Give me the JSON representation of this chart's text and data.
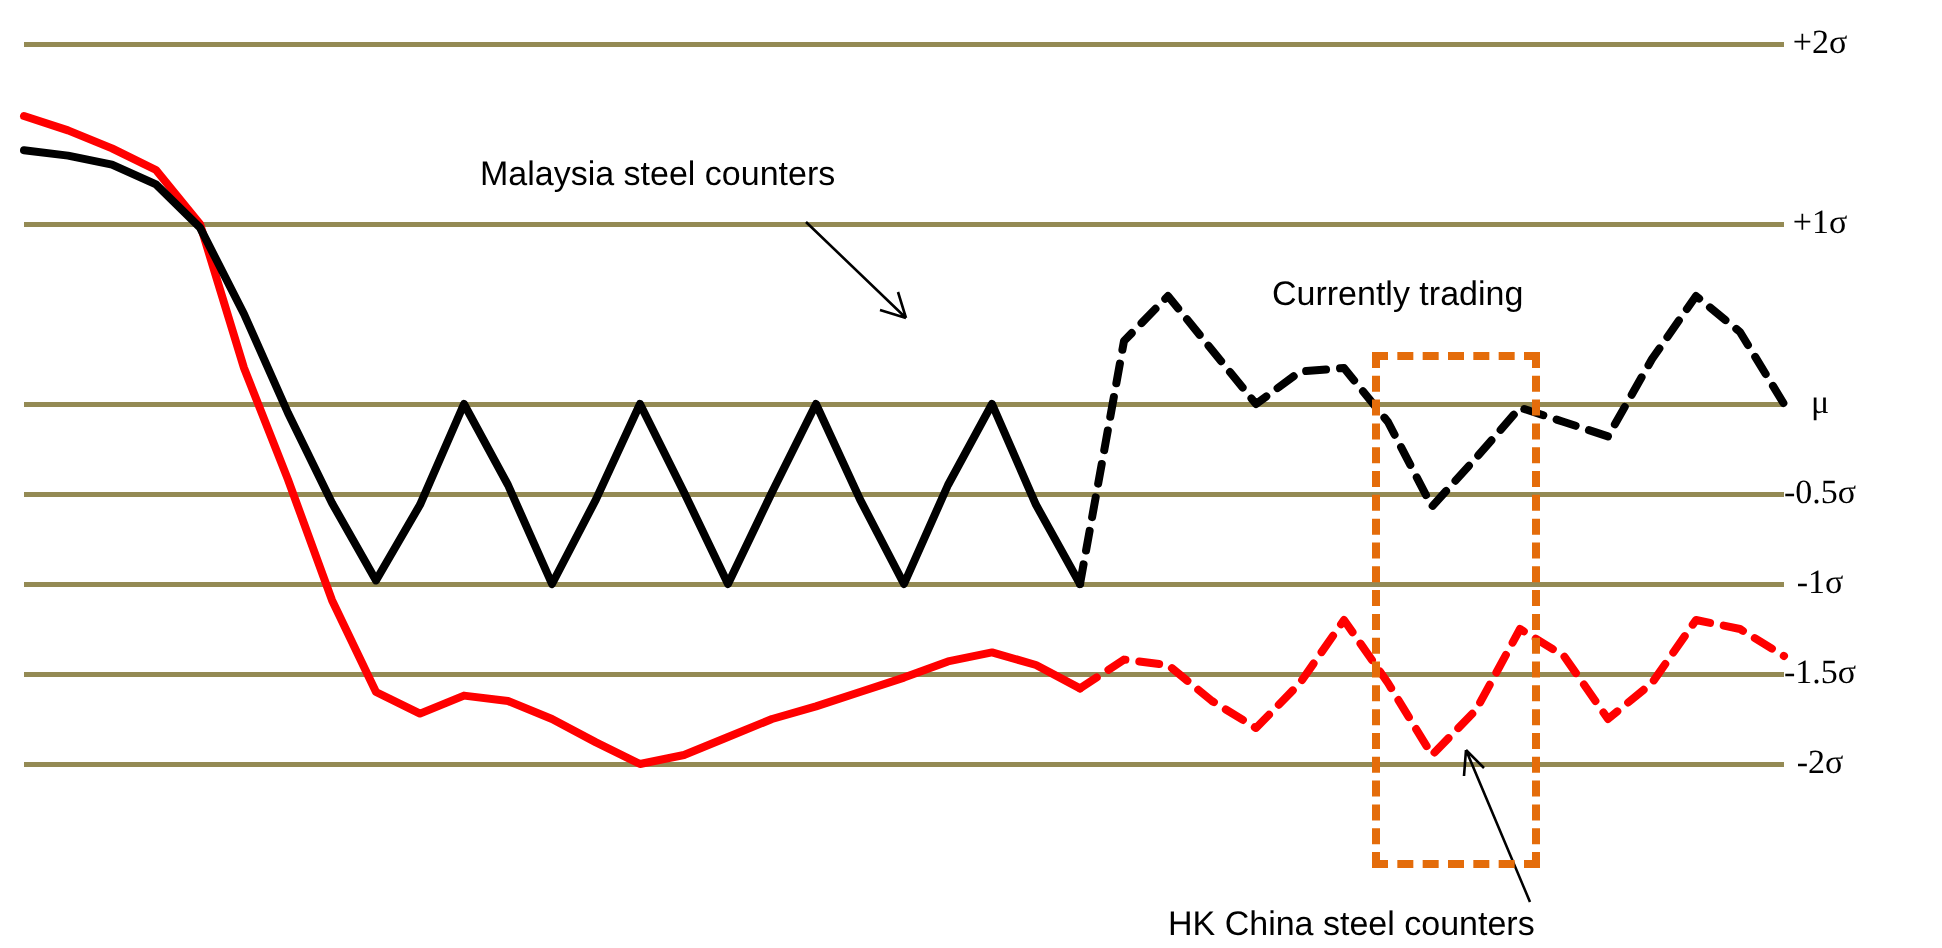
{
  "chart_data": {
    "type": "line",
    "categories": [
      null,
      null,
      null,
      null,
      null,
      null,
      null,
      null,
      null,
      null,
      null,
      null,
      null,
      null,
      null,
      null,
      null,
      null,
      null,
      null,
      null,
      null,
      null,
      null,
      null,
      null,
      null,
      null,
      null,
      null,
      null,
      null,
      null,
      null,
      null,
      null,
      null,
      null,
      null,
      null,
      null
    ],
    "series": [
      {
        "color": "#000000",
        "line_style": "solid",
        "values": [
          1.41,
          1.38,
          1.33,
          1.22,
          0.98,
          0.5,
          -0.05,
          -0.55,
          -0.98,
          -0.56,
          0,
          -0.45,
          -1,
          -0.53,
          0,
          -0.49,
          -1,
          -0.49,
          0,
          -0.53,
          -1,
          -0.45,
          0,
          -0.56,
          -1,
          null,
          null,
          null,
          null,
          null,
          null,
          null,
          null,
          null,
          null,
          null,
          null,
          null,
          null,
          null,
          null
        ]
      },
      {
        "color": "#000000",
        "line_style": "dashed",
        "values": [
          null,
          null,
          null,
          null,
          null,
          null,
          null,
          null,
          null,
          null,
          null,
          null,
          null,
          null,
          null,
          null,
          null,
          null,
          null,
          null,
          null,
          null,
          null,
          null,
          -1,
          0.35,
          0.6,
          0.3,
          0,
          0.18,
          0.2,
          -0.1,
          -0.57,
          -0.3,
          -0.02,
          -0.1,
          -0.18,
          0.25,
          0.6,
          0.4,
          0
        ]
      },
      {
        "color": "#ff0000",
        "line_style": "solid",
        "values": [
          1.6,
          1.52,
          1.42,
          1.3,
          1,
          0.2,
          -0.42,
          -1.09,
          -1.6,
          -1.72,
          -1.62,
          -1.65,
          -1.75,
          -1.88,
          -2,
          -1.95,
          -1.85,
          -1.75,
          -1.68,
          -1.6,
          -1.52,
          -1.43,
          -1.38,
          -1.45,
          -1.58,
          null,
          null,
          null,
          null,
          null,
          null,
          null,
          null,
          null,
          null,
          null,
          null,
          null,
          null,
          null,
          null
        ]
      },
      {
        "color": "#ff0000",
        "line_style": "dashed",
        "values": [
          null,
          null,
          null,
          null,
          null,
          null,
          null,
          null,
          null,
          null,
          null,
          null,
          null,
          null,
          null,
          null,
          null,
          null,
          null,
          null,
          null,
          null,
          null,
          null,
          -1.58,
          -1.42,
          -1.45,
          -1.65,
          -1.8,
          -1.55,
          -1.2,
          -1.55,
          -1.95,
          -1.7,
          -1.25,
          -1.4,
          -1.75,
          -1.55,
          -1.2,
          -1.25,
          -1.4
        ]
      }
    ],
    "legend": false,
    "marker": "none",
    "grid": "y",
    "tick_labels": "y",
    "ylim": [
      -2,
      2
    ],
    "yticks": [
      {
        "value": 2,
        "label": "+2σ"
      },
      {
        "value": 1,
        "label": "+1σ"
      },
      {
        "value": 0,
        "label": "μ"
      },
      {
        "value": -0.5,
        "label": "-0.5σ"
      },
      {
        "value": -1,
        "label": "-1σ"
      },
      {
        "value": -1.5,
        "label": "-1.5σ"
      },
      {
        "value": -2,
        "label": "-2σ"
      }
    ],
    "annotations": [
      "Malaysia steel counters",
      "Currently trading",
      "HK China steel counters"
    ]
  }
}
